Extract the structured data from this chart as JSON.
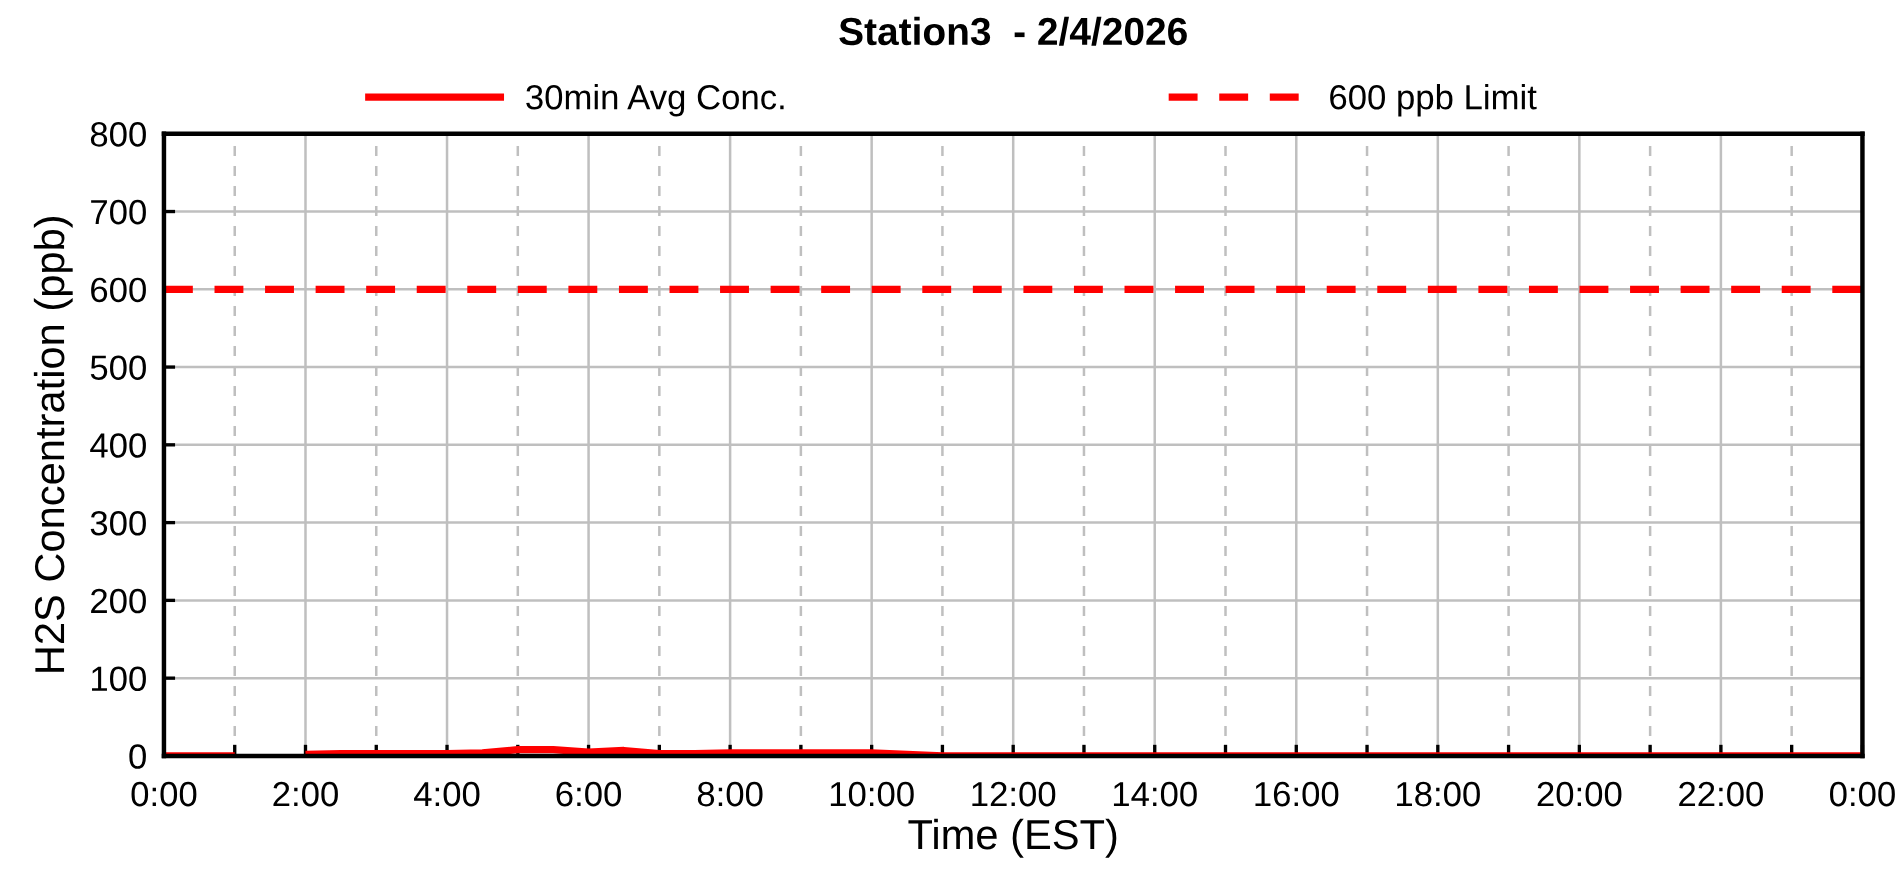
{
  "chart_data": {
    "type": "line",
    "title": "Station3  - 2/4/2026",
    "xlabel": "Time (EST)",
    "ylabel": "H2S Concentration (ppb)",
    "x": [
      0,
      0.5,
      1,
      1.5,
      2,
      2.5,
      3,
      3.5,
      4,
      4.5,
      5,
      5.5,
      6,
      6.5,
      7,
      7.5,
      8,
      8.5,
      9,
      9.5,
      10,
      10.5,
      11,
      11.5,
      12,
      12.5,
      13,
      13.5,
      14,
      14.5,
      15,
      15.5,
      16,
      16.5,
      17,
      17.5,
      18,
      18.5,
      19,
      19.5,
      20,
      20.5,
      21,
      21.5,
      22,
      22.5,
      23,
      23.5,
      24
    ],
    "series": [
      {
        "name": "30min Avg Conc.",
        "color": "#ff0000",
        "values": [
          0,
          0,
          0,
          null,
          2,
          3,
          3,
          3,
          3,
          4,
          8,
          8,
          5,
          7,
          3,
          3,
          4,
          4,
          4,
          4,
          4,
          2,
          0,
          0,
          0,
          0,
          0,
          0,
          0,
          0,
          0,
          0,
          0,
          0,
          0,
          0,
          0,
          0,
          0,
          0,
          0,
          0,
          0,
          0,
          0,
          0,
          0,
          0,
          0
        ]
      }
    ],
    "xlim": [
      0,
      24
    ],
    "xticks": [
      {
        "value": 0,
        "label": "0:00"
      },
      {
        "value": 1,
        "label": null
      },
      {
        "value": 2,
        "label": "2:00"
      },
      {
        "value": 3,
        "label": null
      },
      {
        "value": 4,
        "label": "4:00"
      },
      {
        "value": 5,
        "label": null
      },
      {
        "value": 6,
        "label": "6:00"
      },
      {
        "value": 7,
        "label": null
      },
      {
        "value": 8,
        "label": "8:00"
      },
      {
        "value": 9,
        "label": null
      },
      {
        "value": 10,
        "label": "10:00"
      },
      {
        "value": 11,
        "label": null
      },
      {
        "value": 12,
        "label": "12:00"
      },
      {
        "value": 13,
        "label": null
      },
      {
        "value": 14,
        "label": "14:00"
      },
      {
        "value": 15,
        "label": null
      },
      {
        "value": 16,
        "label": "16:00"
      },
      {
        "value": 17,
        "label": null
      },
      {
        "value": 18,
        "label": "18:00"
      },
      {
        "value": 19,
        "label": null
      },
      {
        "value": 20,
        "label": "20:00"
      },
      {
        "value": 21,
        "label": null
      },
      {
        "value": 22,
        "label": "22:00"
      },
      {
        "value": 23,
        "label": null
      },
      {
        "value": 24,
        "label": "0:00"
      }
    ],
    "ylim": [
      0,
      800
    ],
    "yticks": [
      0,
      100,
      200,
      300,
      400,
      500,
      600,
      700,
      800
    ],
    "ref_lines": [
      {
        "axis": "y",
        "value": 600,
        "label": "600 ppb Limit",
        "color": "#ff0000",
        "line_style": "dashed"
      }
    ],
    "grid": true,
    "legend": "top",
    "line_style": "solid"
  }
}
